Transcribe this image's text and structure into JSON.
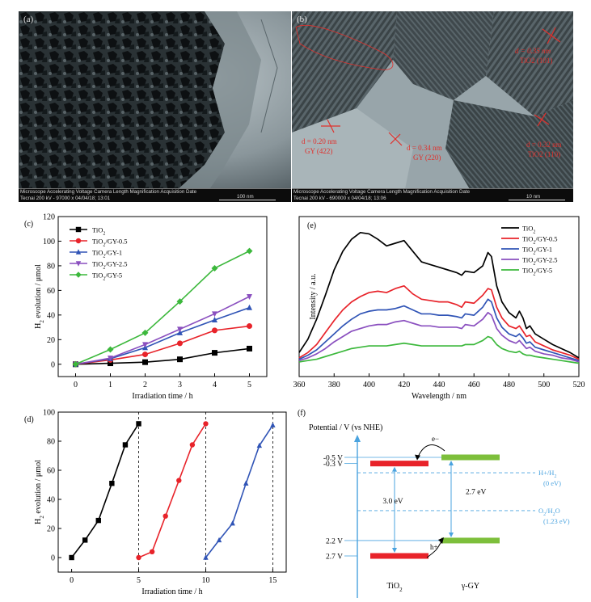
{
  "tem_a": {
    "tag": "(a)",
    "meta_row1": "Microscope Accelerating Voltage Camera Length Magnification Acquisition Date",
    "meta_row2": "Tecnai          200 kV          -          97000 x     04/04/18; 13:01",
    "scale": "100 nm"
  },
  "tem_b": {
    "tag": "(b)",
    "meta_row1": "Microscope Accelerating Voltage Camera Length Magnification Acquisition Date",
    "meta_row2": "Tecnai          200 kV          -          690000 x    04/04/18; 13:06",
    "scale": "10 nm",
    "ann1_d": "d = 0.35 nm",
    "ann1_p": "TiO2 (101)",
    "ann2_d": "d = 0.20 nm",
    "ann2_p": "GY (422)",
    "ann3_d": "d = 0.34 nm",
    "ann3_p": "GY (220)",
    "ann4_d": "d = 0.32 nm",
    "ann4_p": "TiO2 (110)",
    "accent": "#e0302c"
  },
  "chart_data": [
    {
      "panel": "(c)",
      "type": "line",
      "xlabel": "Irradiation time / h",
      "ylabel": "H2 evolution / μmol",
      "xlim": [
        -0.5,
        5.5
      ],
      "ylim": [
        -10,
        120
      ],
      "xticks": [
        0,
        1,
        2,
        3,
        4,
        5
      ],
      "yticks": [
        0,
        20,
        40,
        60,
        80,
        100,
        120
      ],
      "x": [
        0,
        1,
        2,
        3,
        4,
        5
      ],
      "legend_position": "top-left",
      "series": [
        {
          "name": "TiO2",
          "color": "#000000",
          "marker": "square",
          "values": [
            0,
            0.8,
            1.7,
            4,
            9.3,
            12.7
          ]
        },
        {
          "name": "TiO2/GY-0.5",
          "color": "#e8232a",
          "marker": "circle",
          "values": [
            0,
            3.5,
            8,
            17,
            27.5,
            31
          ]
        },
        {
          "name": "TiO2/GY-1",
          "color": "#3054b6",
          "marker": "triangle-up",
          "values": [
            0,
            4.5,
            13.5,
            25.5,
            36,
            46
          ]
        },
        {
          "name": "TiO2/GY-2.5",
          "color": "#8a4fbf",
          "marker": "triangle-down",
          "values": [
            0,
            5,
            16,
            28.5,
            41,
            55
          ]
        },
        {
          "name": "TiO2/GY-5",
          "color": "#3cb83c",
          "marker": "diamond",
          "values": [
            0,
            12,
            25.5,
            51,
            78,
            92
          ]
        }
      ]
    },
    {
      "panel": "(d)",
      "type": "line",
      "xlabel": "Irradiation time / h",
      "ylabel": "H2 evolution / μmol",
      "xlim": [
        -1,
        16
      ],
      "ylim": [
        -10,
        100
      ],
      "xticks": [
        0,
        5,
        10,
        15
      ],
      "yticks": [
        0,
        20,
        40,
        60,
        80,
        100
      ],
      "cycle_lines": [
        5,
        10,
        15
      ],
      "series": [
        {
          "color": "#000000",
          "marker": "square",
          "x": [
            0,
            1,
            2,
            3,
            4,
            5
          ],
          "values": [
            0,
            12,
            25.5,
            51,
            77.5,
            92
          ]
        },
        {
          "color": "#e8232a",
          "marker": "circle",
          "x": [
            5,
            6,
            7,
            8,
            9,
            10
          ],
          "values": [
            0,
            4,
            28.5,
            53,
            77.5,
            92
          ]
        },
        {
          "color": "#3054b6",
          "marker": "triangle-up",
          "x": [
            10,
            11,
            12,
            13,
            14,
            15
          ],
          "values": [
            0,
            12,
            23.5,
            51,
            77,
            91
          ]
        }
      ]
    },
    {
      "panel": "(e)",
      "type": "line",
      "xlabel": "Wavelength / nm",
      "ylabel": "Intensity / a.u.",
      "xlim": [
        360,
        520
      ],
      "ylim": [
        0,
        1
      ],
      "xticks": [
        360,
        380,
        400,
        420,
        440,
        460,
        480,
        500,
        520
      ],
      "y_tick_labels": false,
      "legend_position": "top-right",
      "x": [
        360,
        365,
        370,
        375,
        380,
        385,
        390,
        395,
        400,
        405,
        410,
        415,
        420,
        425,
        430,
        435,
        440,
        445,
        450,
        453,
        455,
        460,
        465,
        468,
        470,
        473,
        476,
        480,
        484,
        486,
        488,
        490,
        492,
        495,
        500,
        505,
        510,
        515,
        520
      ],
      "series": [
        {
          "name": "TiO2",
          "color": "#000000",
          "values": [
            0.1,
            0.2,
            0.35,
            0.53,
            0.72,
            0.86,
            0.95,
            1.0,
            0.99,
            0.95,
            0.9,
            0.92,
            0.94,
            0.86,
            0.78,
            0.76,
            0.74,
            0.72,
            0.7,
            0.68,
            0.71,
            0.7,
            0.75,
            0.85,
            0.82,
            0.6,
            0.48,
            0.4,
            0.36,
            0.41,
            0.36,
            0.28,
            0.3,
            0.24,
            0.2,
            0.16,
            0.13,
            0.1,
            0.06
          ]
        },
        {
          "name": "TiO2/GY-0.5",
          "color": "#e8232a",
          "values": [
            0.06,
            0.1,
            0.16,
            0.25,
            0.34,
            0.42,
            0.48,
            0.52,
            0.55,
            0.56,
            0.55,
            0.58,
            0.6,
            0.54,
            0.5,
            0.49,
            0.48,
            0.48,
            0.46,
            0.44,
            0.48,
            0.47,
            0.53,
            0.58,
            0.57,
            0.44,
            0.36,
            0.3,
            0.28,
            0.3,
            0.26,
            0.22,
            0.23,
            0.18,
            0.15,
            0.12,
            0.1,
            0.08,
            0.05
          ]
        },
        {
          "name": "TiO2/GY-1",
          "color": "#3054b6",
          "values": [
            0.05,
            0.08,
            0.12,
            0.18,
            0.24,
            0.3,
            0.35,
            0.39,
            0.41,
            0.42,
            0.42,
            0.43,
            0.45,
            0.42,
            0.39,
            0.39,
            0.38,
            0.38,
            0.37,
            0.36,
            0.39,
            0.38,
            0.44,
            0.5,
            0.48,
            0.36,
            0.29,
            0.24,
            0.22,
            0.24,
            0.21,
            0.17,
            0.18,
            0.14,
            0.12,
            0.1,
            0.08,
            0.06,
            0.04
          ]
        },
        {
          "name": "TiO2/GY-2.5",
          "color": "#8a4fbf",
          "values": [
            0.04,
            0.06,
            0.09,
            0.13,
            0.18,
            0.22,
            0.26,
            0.28,
            0.3,
            0.31,
            0.31,
            0.33,
            0.34,
            0.32,
            0.3,
            0.3,
            0.29,
            0.29,
            0.29,
            0.28,
            0.31,
            0.3,
            0.35,
            0.4,
            0.38,
            0.28,
            0.23,
            0.19,
            0.17,
            0.19,
            0.16,
            0.13,
            0.14,
            0.11,
            0.09,
            0.08,
            0.06,
            0.05,
            0.03
          ]
        },
        {
          "name": "TiO2/GY-5",
          "color": "#3cb83c",
          "values": [
            0.03,
            0.04,
            0.05,
            0.07,
            0.09,
            0.11,
            0.13,
            0.14,
            0.15,
            0.15,
            0.15,
            0.16,
            0.17,
            0.16,
            0.15,
            0.15,
            0.15,
            0.15,
            0.15,
            0.15,
            0.16,
            0.16,
            0.19,
            0.22,
            0.21,
            0.16,
            0.13,
            0.11,
            0.1,
            0.11,
            0.09,
            0.08,
            0.08,
            0.07,
            0.06,
            0.05,
            0.04,
            0.03,
            0.02
          ]
        }
      ]
    }
  ],
  "band_diagram": {
    "tag": "(f)",
    "axis_label": "Potential / V (vs NHE)",
    "tick_labels": [
      "-0.5 V",
      "-0.3 V",
      "2.2 V",
      "2.7 V"
    ],
    "tick_values": [
      -0.5,
      -0.3,
      2.2,
      2.7
    ],
    "tio2": {
      "label": "TiO2",
      "cb": -0.3,
      "vb": 2.7,
      "gap_label": "3.0 eV",
      "color": "#e8232a"
    },
    "gy": {
      "label": "γ-GY",
      "cb": -0.5,
      "vb": 2.2,
      "gap_label": "2.7 eV",
      "color": "#7dbf3b"
    },
    "h_ref": {
      "label": "H+/H2",
      "potential_label": "(0 eV)",
      "value": 0
    },
    "o_ref": {
      "label": "O2/H2O",
      "potential_label": "(1.23 eV)",
      "value": 1.23
    },
    "electron_label": "e−",
    "hole_label": "h+",
    "blue": "#4aa3df"
  }
}
